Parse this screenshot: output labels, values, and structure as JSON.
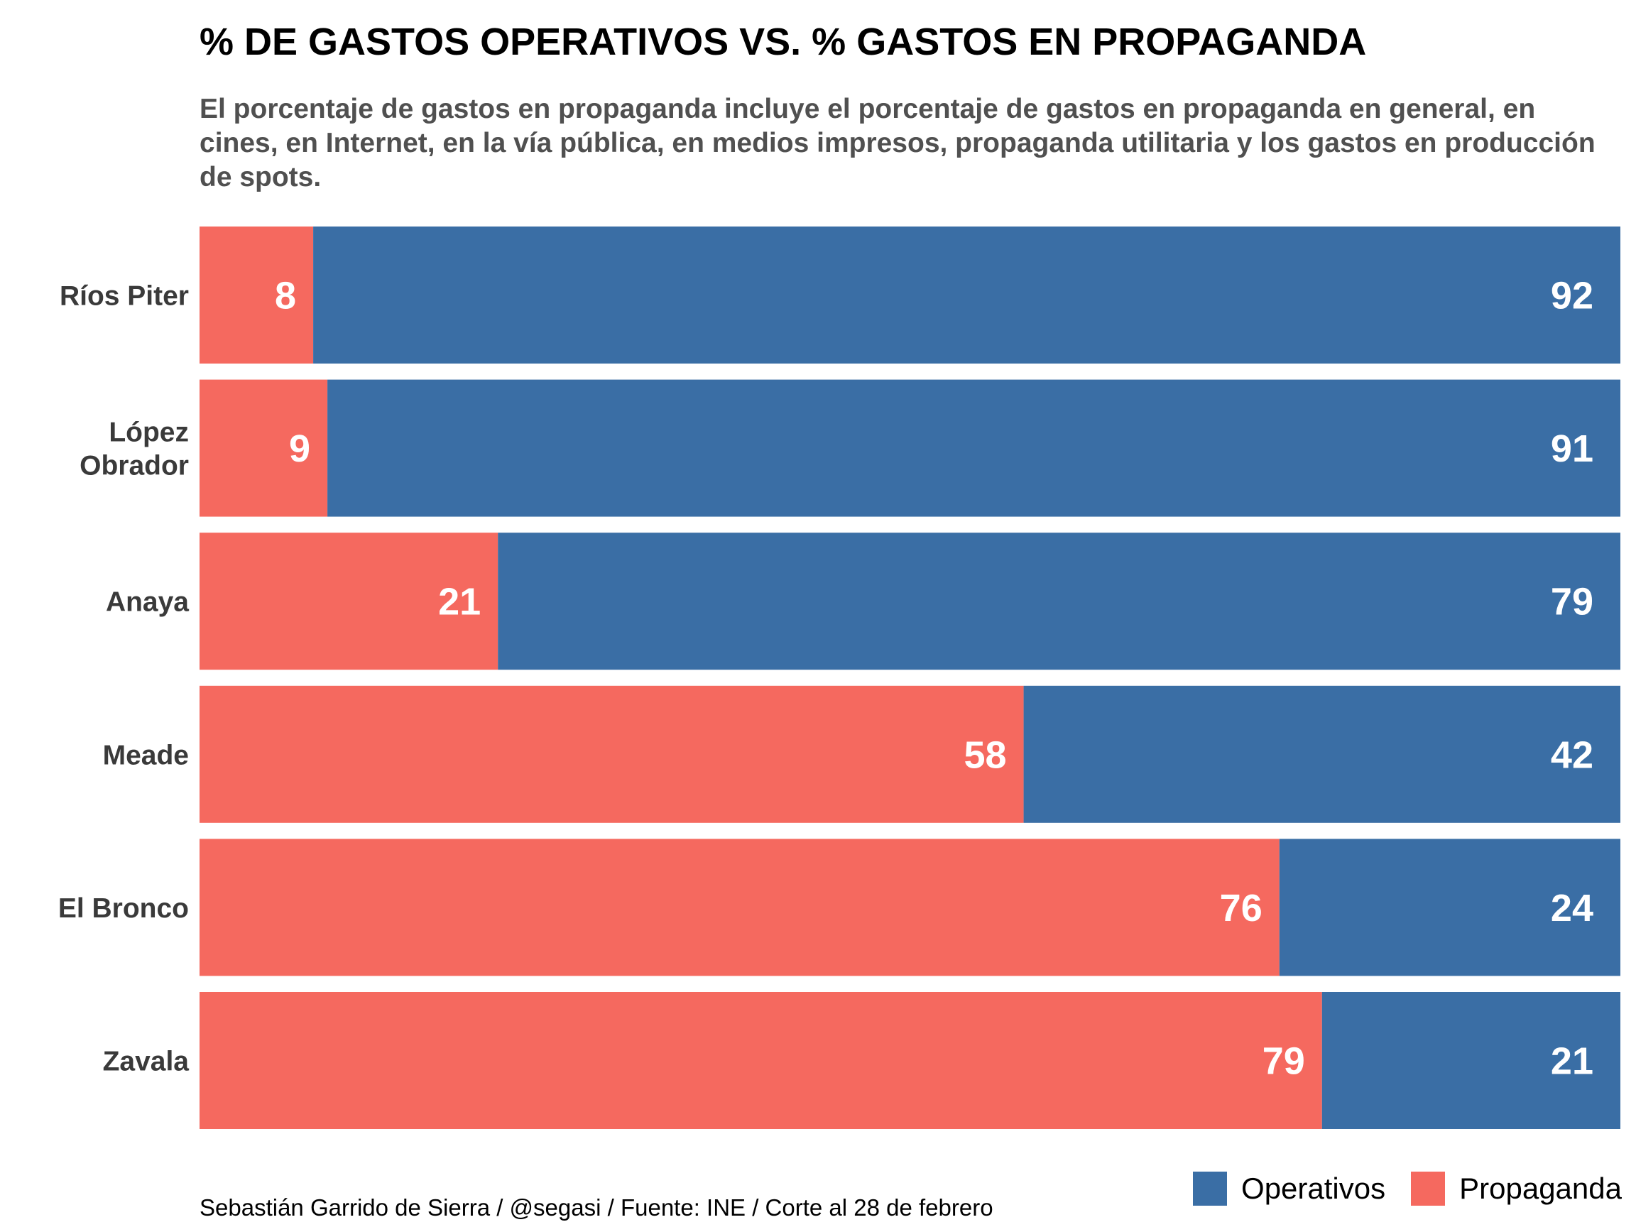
{
  "title": "% DE GASTOS OPERATIVOS VS. % GASTOS EN PROPAGANDA",
  "subtitle": "El porcentaje de gastos en propaganda incluye el porcentaje de gastos en propaganda en general, en cines, en Internet, en la vía pública, en medios impresos, propaganda utilitaria y los gastos en producción de spots.",
  "caption": "Sebastián Garrido de Sierra / @segasi / Fuente: INE / Corte al 28 de febrero",
  "colors": {
    "operativos": "#3A6EA5",
    "propaganda": "#F5695F"
  },
  "legend": [
    {
      "label": "Operativos",
      "color": "#3A6EA5"
    },
    {
      "label": "Propaganda",
      "color": "#F5695F"
    }
  ],
  "chart_data": {
    "type": "bar",
    "orientation": "horizontal",
    "stacked": true,
    "categories": [
      [
        "Ríos Piter"
      ],
      [
        "López",
        "Obrador"
      ],
      [
        "Anaya"
      ],
      [
        "Meade"
      ],
      [
        "El Bronco"
      ],
      [
        "Zavala"
      ]
    ],
    "series": [
      {
        "name": "Propaganda",
        "values": [
          8,
          9,
          21,
          58,
          76,
          79
        ]
      },
      {
        "name": "Operativos",
        "values": [
          92,
          91,
          79,
          42,
          24,
          21
        ]
      }
    ],
    "xlim": [
      0,
      100
    ],
    "grid": false,
    "legend_position": "bottom-right"
  }
}
